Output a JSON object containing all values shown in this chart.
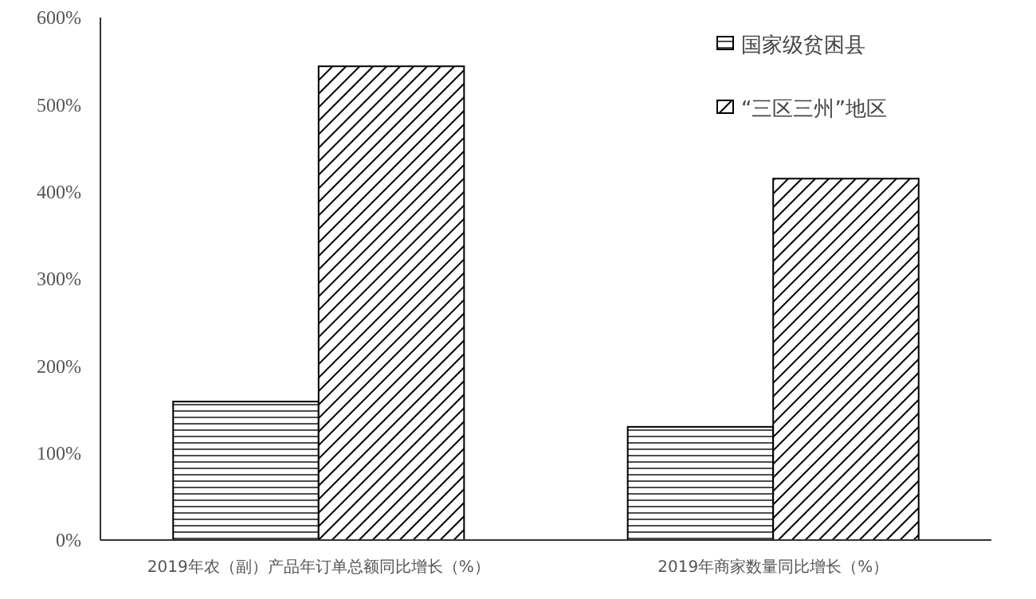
{
  "chart_data": {
    "type": "bar",
    "categories": [
      "2019年农（副）产品年订单总额同比增长（%）",
      "2019年商家数量同比增长（%）"
    ],
    "series": [
      {
        "name": "国家级贫困县",
        "color": "#000000",
        "values": [
          159,
          130
        ]
      },
      {
        "name": "“三区三州”地区",
        "color": "#000000",
        "values": [
          544,
          415
        ]
      }
    ],
    "ylim": [
      0,
      600
    ],
    "yticks": [
      {
        "value": 0,
        "label": "0%"
      },
      {
        "value": 100,
        "label": "100%"
      },
      {
        "value": 200,
        "label": "200%"
      },
      {
        "value": 300,
        "label": "300%"
      },
      {
        "value": 400,
        "label": "400%"
      },
      {
        "value": 500,
        "label": "500%"
      },
      {
        "value": 600,
        "label": "600%"
      }
    ],
    "grid": false,
    "legend": "top right"
  }
}
